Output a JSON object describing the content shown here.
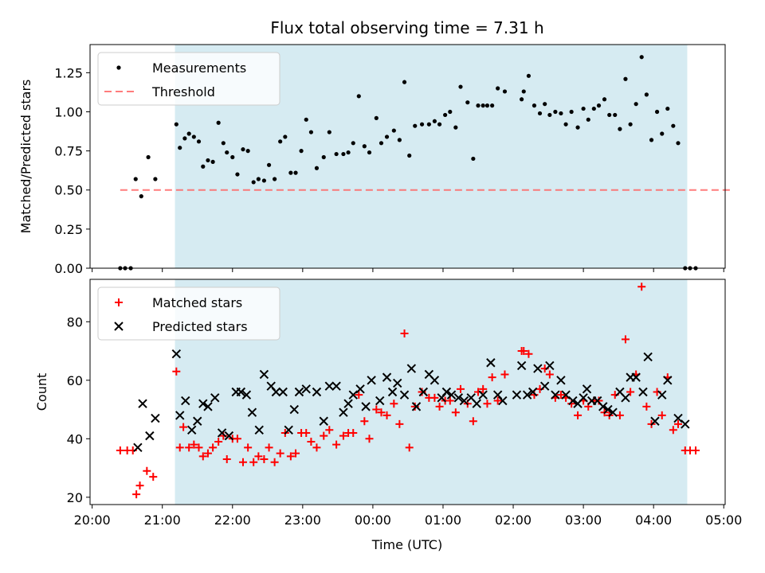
{
  "figure": {
    "title": "Flux total observing time = 7.31 h",
    "xlabel": "Time (UTC)",
    "x_ticks": [
      "20:00",
      "21:00",
      "22:00",
      "23:00",
      "00:00",
      "01:00",
      "02:00",
      "03:00",
      "04:00",
      "05:00"
    ],
    "x_tick_hours": [
      20,
      21,
      22,
      23,
      24,
      25,
      26,
      27,
      28,
      29
    ],
    "xlim_hours": [
      19.97,
      29.02
    ],
    "shade_hours": [
      21.18,
      28.48
    ],
    "colors": {
      "shade": "#add8e6",
      "threshold": "#ff6666",
      "matched": "#ff0000",
      "predicted": "#000000",
      "measure": "#000000"
    }
  },
  "chart_data": [
    {
      "type": "scatter",
      "ylabel": "Matched/Predicted stars",
      "ylim": [
        0,
        1.43
      ],
      "y_ticks": [
        "0.00",
        "0.25",
        "0.50",
        "0.75",
        "1.00",
        "1.25"
      ],
      "y_tick_values": [
        0,
        0.25,
        0.5,
        0.75,
        1.0,
        1.25
      ],
      "legend": {
        "position": "top-left",
        "entries": [
          "Measurements",
          "Threshold"
        ]
      },
      "threshold": {
        "value": 0.5,
        "x_range": [
          20.4,
          29.1
        ]
      },
      "series": [
        {
          "name": "Measurements",
          "x": [
            20.4,
            20.47,
            20.55,
            20.62,
            20.7,
            20.8,
            20.9,
            21.2,
            21.25,
            21.32,
            21.38,
            21.45,
            21.52,
            21.58,
            21.65,
            21.72,
            21.8,
            21.87,
            21.92,
            22.0,
            22.07,
            22.15,
            22.22,
            22.3,
            22.37,
            22.45,
            22.52,
            22.6,
            22.68,
            22.75,
            22.83,
            22.9,
            22.98,
            23.05,
            23.12,
            23.2,
            23.3,
            23.38,
            23.48,
            23.58,
            23.65,
            23.72,
            23.8,
            23.88,
            23.95,
            24.05,
            24.12,
            24.2,
            24.3,
            24.38,
            24.45,
            24.52,
            24.6,
            24.7,
            24.8,
            24.88,
            24.95,
            25.03,
            25.1,
            25.18,
            25.25,
            25.35,
            25.43,
            25.5,
            25.57,
            25.63,
            25.7,
            25.78,
            25.88,
            26.12,
            26.15,
            26.22,
            26.3,
            26.38,
            26.45,
            26.52,
            26.6,
            26.68,
            26.75,
            26.83,
            26.92,
            27.0,
            27.07,
            27.15,
            27.22,
            27.3,
            27.37,
            27.45,
            27.52,
            27.6,
            27.67,
            27.75,
            27.83,
            27.9,
            27.97,
            28.05,
            28.12,
            28.2,
            28.28,
            28.35,
            28.45,
            28.52,
            28.6
          ],
          "y": [
            0,
            0,
            0,
            0.57,
            0.46,
            0.71,
            0.57,
            0.92,
            0.77,
            0.83,
            0.86,
            0.84,
            0.81,
            0.65,
            0.69,
            0.68,
            0.93,
            0.8,
            0.74,
            0.71,
            0.6,
            0.76,
            0.75,
            0.55,
            0.57,
            0.56,
            0.66,
            0.57,
            0.81,
            0.84,
            0.61,
            0.61,
            0.75,
            0.95,
            0.87,
            0.64,
            0.71,
            0.87,
            0.73,
            0.73,
            0.74,
            0.8,
            1.1,
            0.78,
            0.74,
            0.96,
            0.8,
            0.84,
            0.88,
            0.82,
            1.19,
            0.72,
            0.91,
            0.92,
            0.92,
            0.94,
            0.92,
            0.98,
            1.0,
            0.9,
            1.16,
            1.06,
            0.7,
            1.04,
            1.04,
            1.04,
            1.04,
            1.15,
            1.13,
            1.08,
            1.13,
            1.23,
            1.04,
            0.99,
            1.05,
            0.98,
            1.0,
            0.99,
            0.92,
            1.0,
            0.9,
            1.02,
            0.95,
            1.02,
            1.04,
            1.08,
            0.98,
            0.98,
            0.89,
            1.21,
            0.92,
            1.05,
            1.35,
            1.11,
            0.82,
            1.0,
            0.86,
            1.02,
            0.91,
            0.8,
            0,
            0,
            0
          ]
        }
      ]
    },
    {
      "type": "scatter",
      "ylabel": "Count",
      "ylim": [
        17.5,
        94.5
      ],
      "y_ticks": [
        "20",
        "40",
        "60",
        "80"
      ],
      "y_tick_values": [
        20,
        40,
        60,
        80
      ],
      "legend": {
        "position": "top-left",
        "entries": [
          "Matched stars",
          "Predicted stars"
        ]
      },
      "series": [
        {
          "name": "Matched stars",
          "marker": "plus",
          "x": [
            20.4,
            20.5,
            20.58,
            20.63,
            20.68,
            20.78,
            20.87,
            21.2,
            21.25,
            21.3,
            21.38,
            21.45,
            21.52,
            21.58,
            21.65,
            21.72,
            21.8,
            21.87,
            21.92,
            22.0,
            22.07,
            22.15,
            22.22,
            22.3,
            22.37,
            22.45,
            22.52,
            22.6,
            22.68,
            22.75,
            22.83,
            22.9,
            22.98,
            23.05,
            23.12,
            23.2,
            23.3,
            23.38,
            23.48,
            23.58,
            23.65,
            23.72,
            23.8,
            23.88,
            23.95,
            24.05,
            24.12,
            24.2,
            24.3,
            24.38,
            24.45,
            24.52,
            24.6,
            24.7,
            24.8,
            24.88,
            24.95,
            25.03,
            25.1,
            25.18,
            25.25,
            25.35,
            25.43,
            25.5,
            25.57,
            25.63,
            25.7,
            25.78,
            25.88,
            26.12,
            26.15,
            26.22,
            26.3,
            26.38,
            26.45,
            26.52,
            26.6,
            26.68,
            26.75,
            26.83,
            26.92,
            27.0,
            27.07,
            27.15,
            27.22,
            27.3,
            27.37,
            27.45,
            27.52,
            27.6,
            27.67,
            27.75,
            27.83,
            27.9,
            27.97,
            28.05,
            28.12,
            28.2,
            28.28,
            28.35,
            28.45,
            28.52,
            28.6
          ],
          "y": [
            36,
            36,
            36,
            21,
            24,
            29,
            27,
            63,
            37,
            44,
            37,
            38,
            37,
            34,
            35,
            37,
            39,
            41,
            33,
            40,
            40,
            32,
            37,
            32,
            34,
            33,
            37,
            32,
            35,
            42,
            34,
            35,
            42,
            42,
            39,
            37,
            41,
            43,
            38,
            41,
            42,
            42,
            55,
            46,
            40,
            50,
            49,
            48,
            52,
            45,
            76,
            37,
            51,
            56,
            54,
            54,
            51,
            53,
            53,
            49,
            57,
            52,
            46,
            56,
            57,
            52,
            61,
            53,
            62,
            70,
            70,
            69,
            55,
            57,
            64,
            62,
            54,
            55,
            54,
            52,
            48,
            53,
            51,
            53,
            53,
            49,
            48,
            55,
            48,
            74,
            56,
            62,
            92,
            51,
            45,
            56,
            48,
            61,
            43,
            45,
            36,
            36,
            36
          ]
        },
        {
          "name": "Predicted stars",
          "marker": "x",
          "x": [
            20.65,
            20.72,
            20.82,
            20.9,
            21.2,
            21.25,
            21.33,
            21.42,
            21.5,
            21.58,
            21.65,
            21.75,
            21.85,
            21.95,
            22.05,
            22.12,
            22.2,
            22.28,
            22.38,
            22.45,
            22.55,
            22.62,
            22.72,
            22.8,
            22.88,
            22.95,
            23.05,
            23.2,
            23.3,
            23.38,
            23.48,
            23.58,
            23.65,
            23.72,
            23.82,
            23.9,
            23.98,
            24.1,
            24.2,
            24.28,
            24.35,
            24.45,
            24.55,
            24.62,
            24.72,
            24.8,
            24.88,
            24.98,
            25.05,
            25.12,
            25.22,
            25.3,
            25.4,
            25.48,
            25.57,
            25.68,
            25.78,
            25.85,
            26.05,
            26.12,
            26.2,
            26.28,
            26.35,
            26.45,
            26.52,
            26.6,
            26.68,
            26.75,
            26.85,
            26.92,
            27.0,
            27.05,
            27.12,
            27.2,
            27.28,
            27.35,
            27.42,
            27.52,
            27.6,
            27.67,
            27.75,
            27.85,
            27.92,
            28.02,
            28.12,
            28.2,
            28.35,
            28.45
          ],
          "y": [
            37,
            52,
            41,
            47,
            69,
            48,
            53,
            43,
            46,
            52,
            51,
            54,
            42,
            41,
            56,
            56,
            55,
            49,
            43,
            62,
            58,
            56,
            56,
            43,
            50,
            56,
            57,
            56,
            46,
            58,
            58,
            49,
            52,
            55,
            57,
            51,
            60,
            53,
            61,
            56,
            59,
            55,
            64,
            51,
            56,
            62,
            60,
            54,
            56,
            55,
            54,
            53,
            54,
            52,
            55,
            66,
            55,
            53,
            55,
            65,
            55,
            56,
            64,
            58,
            65,
            55,
            60,
            55,
            53,
            52,
            54,
            57,
            53,
            53,
            51,
            50,
            49,
            56,
            54,
            61,
            61,
            56,
            68,
            46,
            55,
            60,
            47,
            45
          ]
        }
      ]
    }
  ]
}
